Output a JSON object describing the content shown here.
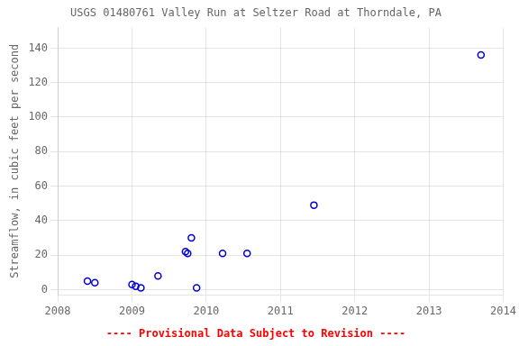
{
  "chart_data": {
    "type": "scatter",
    "title": "USGS 01480761 Valley Run at Seltzer Road at Thorndale, PA",
    "y_label": "Streamflow, in cubic feet per second",
    "x": [
      2008.4,
      2008.5,
      2009.0,
      2009.05,
      2009.12,
      2009.35,
      2009.72,
      2009.75,
      2009.8,
      2009.87,
      2010.22,
      2010.55,
      2011.45,
      2013.7
    ],
    "values": [
      5,
      4,
      3,
      2,
      1,
      8,
      22,
      21,
      30,
      1,
      21,
      21,
      49,
      136
    ],
    "color": "#0000CC",
    "marker": "circle",
    "xlim": [
      2008,
      2014
    ],
    "xticks": [
      2008,
      2009,
      2010,
      2011,
      2012,
      2013,
      2014
    ],
    "ylim": [
      -3,
      152
    ],
    "yticks": [
      0,
      20,
      40,
      60,
      80,
      100,
      120,
      140
    ],
    "grid": true,
    "annotations": [
      {
        "text": "---- Provisional Data Subject to Revision ----",
        "color": "#ff0000"
      }
    ]
  }
}
